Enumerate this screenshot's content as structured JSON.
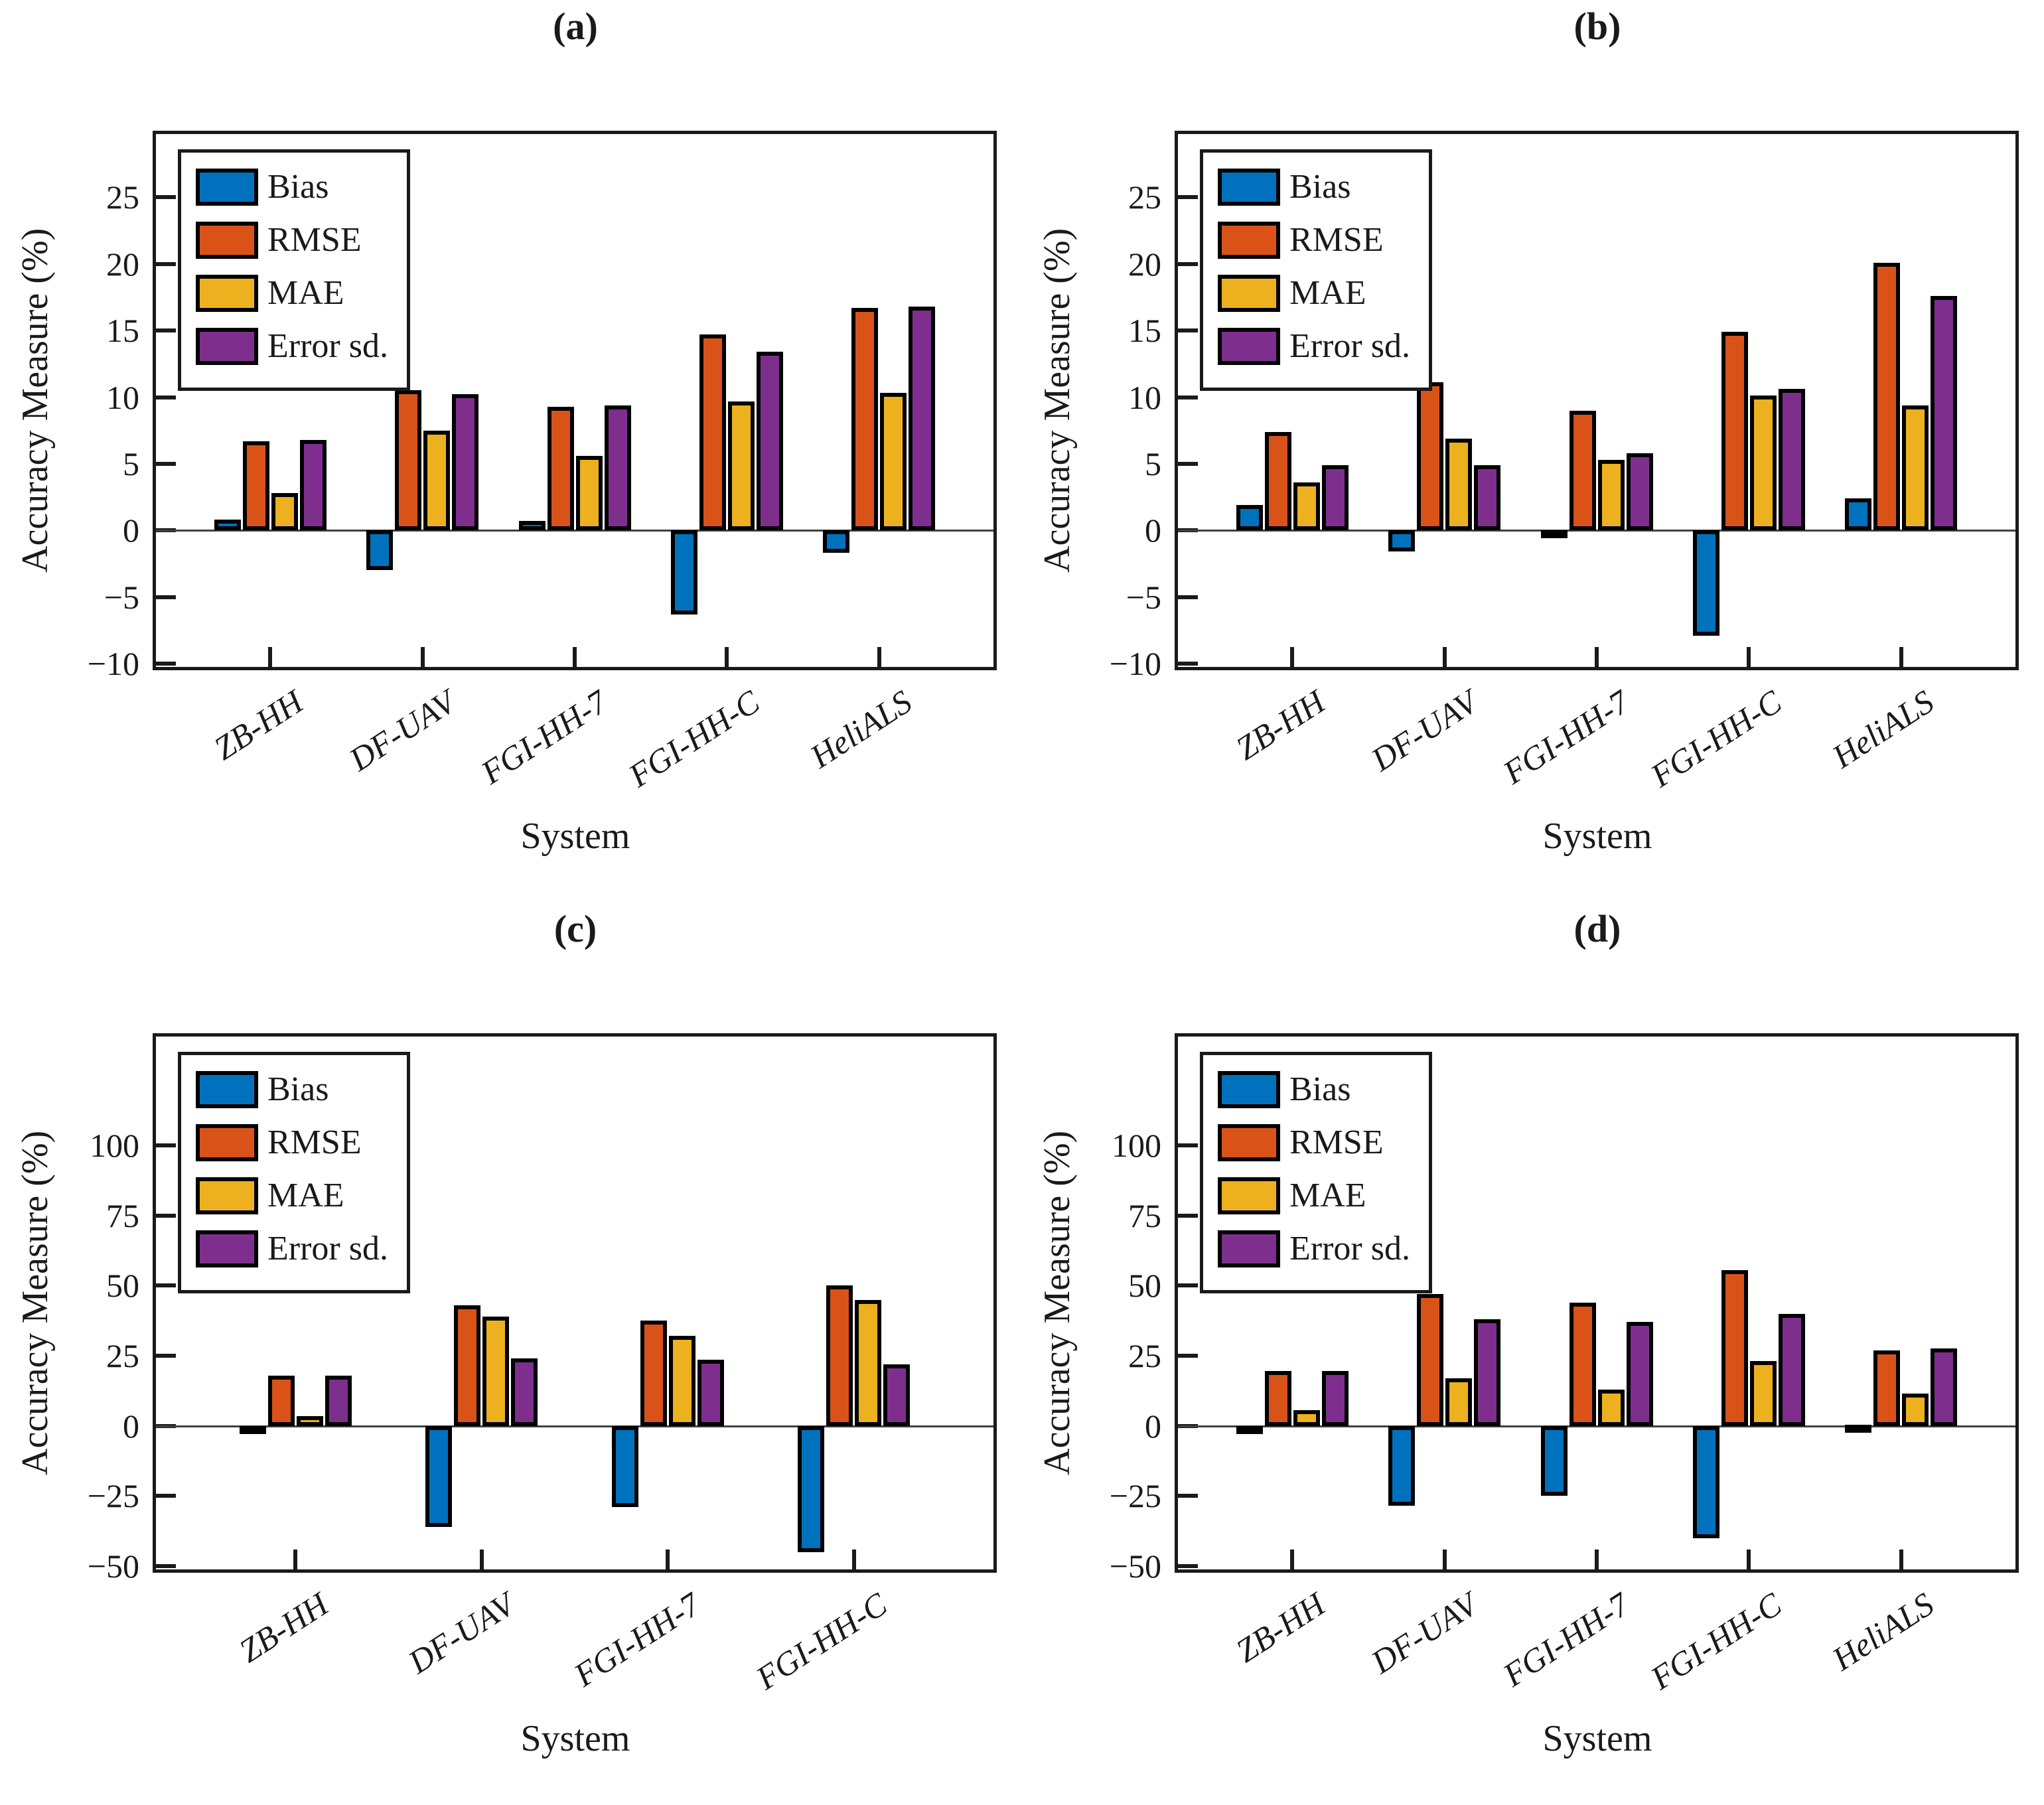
{
  "figure": {
    "ylabel": "Accuracy Measure (%)",
    "xlabel": "System"
  },
  "palette": {
    "bias": "#0072BD",
    "rmse": "#D95319",
    "mae": "#EDB120",
    "error_sd": "#7E2F8E",
    "bar_edge": "#000000",
    "axis": "#1a1a1a"
  },
  "legend_labels": [
    "Bias",
    "RMSE",
    "MAE",
    "Error sd."
  ],
  "chart_data": [
    {
      "type": "bar",
      "title": "(a)",
      "xlabel": "System",
      "ylabel": "Accuracy Measure (%)",
      "categories": [
        "ZB-HH",
        "DF-UAV",
        "FGI-HH-7",
        "FGI-HH-C",
        "HeliALS"
      ],
      "yticks": [
        -10,
        -5,
        0,
        5,
        10,
        15,
        20,
        25
      ],
      "ylim": [
        -10,
        30
      ],
      "legend_position": "top-left-inside",
      "grid": false,
      "series": [
        {
          "name": "Bias",
          "color": "#0072BD",
          "values": [
            0.8,
            -3.0,
            0.7,
            -6.3,
            -1.7
          ]
        },
        {
          "name": "RMSE",
          "color": "#D95319",
          "values": [
            6.7,
            10.5,
            9.3,
            14.7,
            16.7
          ]
        },
        {
          "name": "MAE",
          "color": "#EDB120",
          "values": [
            2.8,
            7.5,
            5.6,
            9.7,
            10.3
          ]
        },
        {
          "name": "Error sd.",
          "color": "#7E2F8E",
          "values": [
            6.8,
            10.2,
            9.4,
            13.4,
            16.8
          ]
        }
      ]
    },
    {
      "type": "bar",
      "title": "(b)",
      "xlabel": "System",
      "ylabel": "Accuracy Measure (%)",
      "categories": [
        "ZB-HH",
        "DF-UAV",
        "FGI-HH-7",
        "FGI-HH-C",
        "HeliALS"
      ],
      "yticks": [
        -10,
        -5,
        0,
        5,
        10,
        15,
        20,
        25
      ],
      "ylim": [
        -10,
        30
      ],
      "legend_position": "top-left-inside",
      "grid": false,
      "series": [
        {
          "name": "Bias",
          "color": "#0072BD",
          "values": [
            1.9,
            -1.6,
            -0.6,
            -7.9,
            2.4
          ]
        },
        {
          "name": "RMSE",
          "color": "#D95319",
          "values": [
            7.4,
            11.1,
            9.0,
            14.9,
            20.1
          ]
        },
        {
          "name": "MAE",
          "color": "#EDB120",
          "values": [
            3.6,
            6.9,
            5.3,
            10.1,
            9.4
          ]
        },
        {
          "name": "Error sd.",
          "color": "#7E2F8E",
          "values": [
            4.9,
            4.9,
            5.8,
            10.6,
            17.6
          ]
        }
      ]
    },
    {
      "type": "bar",
      "title": "(c)",
      "xlabel": "System",
      "ylabel": "Accuracy Measure (%)",
      "categories": [
        "ZB-HH",
        "DF-UAV",
        "FGI-HH-7",
        "FGI-HH-C"
      ],
      "yticks": [
        -50,
        -25,
        0,
        25,
        50,
        75,
        100
      ],
      "ylim": [
        -50,
        140
      ],
      "legend_position": "top-left-inside",
      "grid": false,
      "series": [
        {
          "name": "Bias",
          "color": "#0072BD",
          "values": [
            -2.7,
            -36.0,
            -29.0,
            -45.0
          ]
        },
        {
          "name": "RMSE",
          "color": "#D95319",
          "values": [
            18.0,
            43.0,
            37.5,
            50.0
          ]
        },
        {
          "name": "MAE",
          "color": "#EDB120",
          "values": [
            3.5,
            39.0,
            32.0,
            45.0
          ]
        },
        {
          "name": "Error sd.",
          "color": "#7E2F8E",
          "values": [
            18.0,
            24.0,
            23.5,
            22.0
          ]
        }
      ]
    },
    {
      "type": "bar",
      "title": "(d)",
      "xlabel": "System",
      "ylabel": "Accuracy Measure (%)",
      "categories": [
        "ZB-HH",
        "DF-UAV",
        "FGI-HH-7",
        "FGI-HH-C",
        "HeliALS"
      ],
      "yticks": [
        -50,
        -25,
        0,
        25,
        50,
        75,
        100
      ],
      "ylim": [
        -50,
        140
      ],
      "legend_position": "top-left-inside",
      "grid": false,
      "series": [
        {
          "name": "Bias",
          "color": "#0072BD",
          "values": [
            -0.5,
            -28.5,
            -25.0,
            -40.0,
            0.5
          ]
        },
        {
          "name": "RMSE",
          "color": "#D95319",
          "values": [
            19.5,
            47.0,
            44.0,
            55.5,
            27.0
          ]
        },
        {
          "name": "MAE",
          "color": "#EDB120",
          "values": [
            5.7,
            17.0,
            13.0,
            23.0,
            11.5
          ]
        },
        {
          "name": "Error sd.",
          "color": "#7E2F8E",
          "values": [
            19.5,
            38.0,
            37.0,
            40.0,
            27.5
          ]
        }
      ]
    }
  ]
}
